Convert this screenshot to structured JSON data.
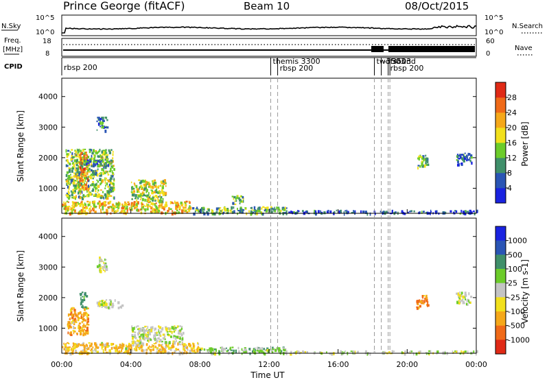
{
  "header": {
    "station": "Prince George (fitACF)",
    "beam": "Beam 10",
    "date": "08/Oct/2015"
  },
  "top_panels": {
    "nsky_label": "N.Sky",
    "nsky_ticks": [
      "10^5",
      "10^0"
    ],
    "nsearch_label": "N.Search",
    "nsearch_ticks": [
      "10^5",
      "10^0"
    ],
    "freq_label_1": "Freq.",
    "freq_label_2": "[MHz]",
    "freq_ticks": [
      "18",
      "8"
    ],
    "nave_label": "Nave",
    "nave_ticks": [
      "60",
      "0"
    ],
    "cpid_label": "CPID",
    "cpid_segments": [
      {
        "hour": 0.0,
        "label": "rbsp 200"
      },
      {
        "hour": 12.1,
        "label": "themis 3300"
      },
      {
        "hour": 12.5,
        "label": "rbsp 200"
      },
      {
        "hour": 18.1,
        "label": "twofsound"
      },
      {
        "hour": 18.5,
        "label": "-3503"
      },
      {
        "hour": 18.9,
        "label": "rbsp 200"
      },
      {
        "hour": 19.0,
        "label": "3503"
      }
    ]
  },
  "axes": {
    "xlabel": "Time UT",
    "x_ticks": [
      "00:00",
      "04:00",
      "08:00",
      "12:00",
      "16:00",
      "20:00",
      "00:00"
    ],
    "ylabel": "Slant Range [km]",
    "y_ticks": [
      "1000",
      "2000",
      "3000",
      "4000"
    ]
  },
  "power_colorbar": {
    "label": "Power [dB]",
    "ticks": [
      "4",
      "8",
      "12",
      "16",
      "20",
      "24",
      "28"
    ],
    "colors": [
      "#1a23e0",
      "#2a55b5",
      "#3f8f6a",
      "#6ccc2a",
      "#f2e01c",
      "#f5a81a",
      "#f06a18",
      "#e02a16"
    ]
  },
  "velocity_colorbar": {
    "label": "Velocity [m s-1]",
    "ticks": [
      "1000",
      "500",
      "100",
      "25",
      "-25",
      "-100",
      "-500",
      "-1000"
    ],
    "colors": [
      "#1a23e0",
      "#2a55b5",
      "#3f8f6a",
      "#6ccc2a",
      "#c4c4c4",
      "#f2e01c",
      "#f5a81a",
      "#f06a18",
      "#e02a16"
    ]
  },
  "chart_data": [
    {
      "type": "heatmap",
      "title": "Power",
      "xlabel": "Time UT",
      "ylabel": "Slant Range [km]",
      "xlim": [
        0,
        24
      ],
      "ylim": [
        180,
        4600
      ],
      "colorbar_label": "Power [dB]",
      "regions": [
        {
          "t0": 0.0,
          "t1": 7.5,
          "r0": 200,
          "r1": 600,
          "value": 20
        },
        {
          "t0": 7.5,
          "t1": 13.0,
          "r0": 200,
          "r1": 420,
          "value": 12
        },
        {
          "t0": 13.0,
          "t1": 24.0,
          "r0": 200,
          "r1": 300,
          "value": 6
        },
        {
          "t0": 0.2,
          "t1": 3.0,
          "r0": 700,
          "r1": 2300,
          "value": 14
        },
        {
          "t0": 1.0,
          "t1": 1.5,
          "r0": 1000,
          "r1": 2200,
          "value": 22
        },
        {
          "t0": 1.3,
          "t1": 2.8,
          "r0": 1750,
          "r1": 1950,
          "value": 8
        },
        {
          "t0": 2.0,
          "t1": 2.6,
          "r0": 2900,
          "r1": 3350,
          "value": 8
        },
        {
          "t0": 4.0,
          "t1": 6.0,
          "r0": 600,
          "r1": 1300,
          "value": 16
        },
        {
          "t0": 9.8,
          "t1": 10.5,
          "r0": 500,
          "r1": 800,
          "value": 14
        },
        {
          "t0": 20.5,
          "t1": 21.2,
          "r0": 1700,
          "r1": 2100,
          "value": 12
        },
        {
          "t0": 22.8,
          "t1": 23.7,
          "r0": 1800,
          "r1": 2200,
          "value": 8
        }
      ]
    },
    {
      "type": "heatmap",
      "title": "Velocity",
      "xlabel": "Time UT",
      "ylabel": "Slant Range [km]",
      "xlim": [
        0,
        24
      ],
      "ylim": [
        180,
        4600
      ],
      "colorbar_label": "Velocity [m s-1]",
      "regions": [
        {
          "t0": 0.0,
          "t1": 8.0,
          "r0": 200,
          "r1": 550,
          "value": -100
        },
        {
          "t0": 8.0,
          "t1": 13.0,
          "r0": 200,
          "r1": 400,
          "value": 50
        },
        {
          "t0": 13.0,
          "t1": 24.0,
          "r0": 200,
          "r1": 280,
          "value": 0
        },
        {
          "t0": 0.3,
          "t1": 1.5,
          "r0": 800,
          "r1": 1700,
          "value": -300
        },
        {
          "t0": 1.0,
          "t1": 1.4,
          "r0": 1700,
          "r1": 2200,
          "value": 300
        },
        {
          "t0": 2.0,
          "t1": 3.5,
          "r0": 1700,
          "r1": 1950,
          "value": 0
        },
        {
          "t0": 2.0,
          "t1": 2.6,
          "r0": 2900,
          "r1": 3350,
          "value": 0
        },
        {
          "t0": 4.0,
          "t1": 7.0,
          "r0": 550,
          "r1": 1100,
          "value": 0
        },
        {
          "t0": 20.5,
          "t1": 21.2,
          "r0": 1700,
          "r1": 2100,
          "value": -500
        },
        {
          "t0": 22.8,
          "t1": 23.7,
          "r0": 1800,
          "r1": 2200,
          "value": 0
        }
      ]
    }
  ]
}
